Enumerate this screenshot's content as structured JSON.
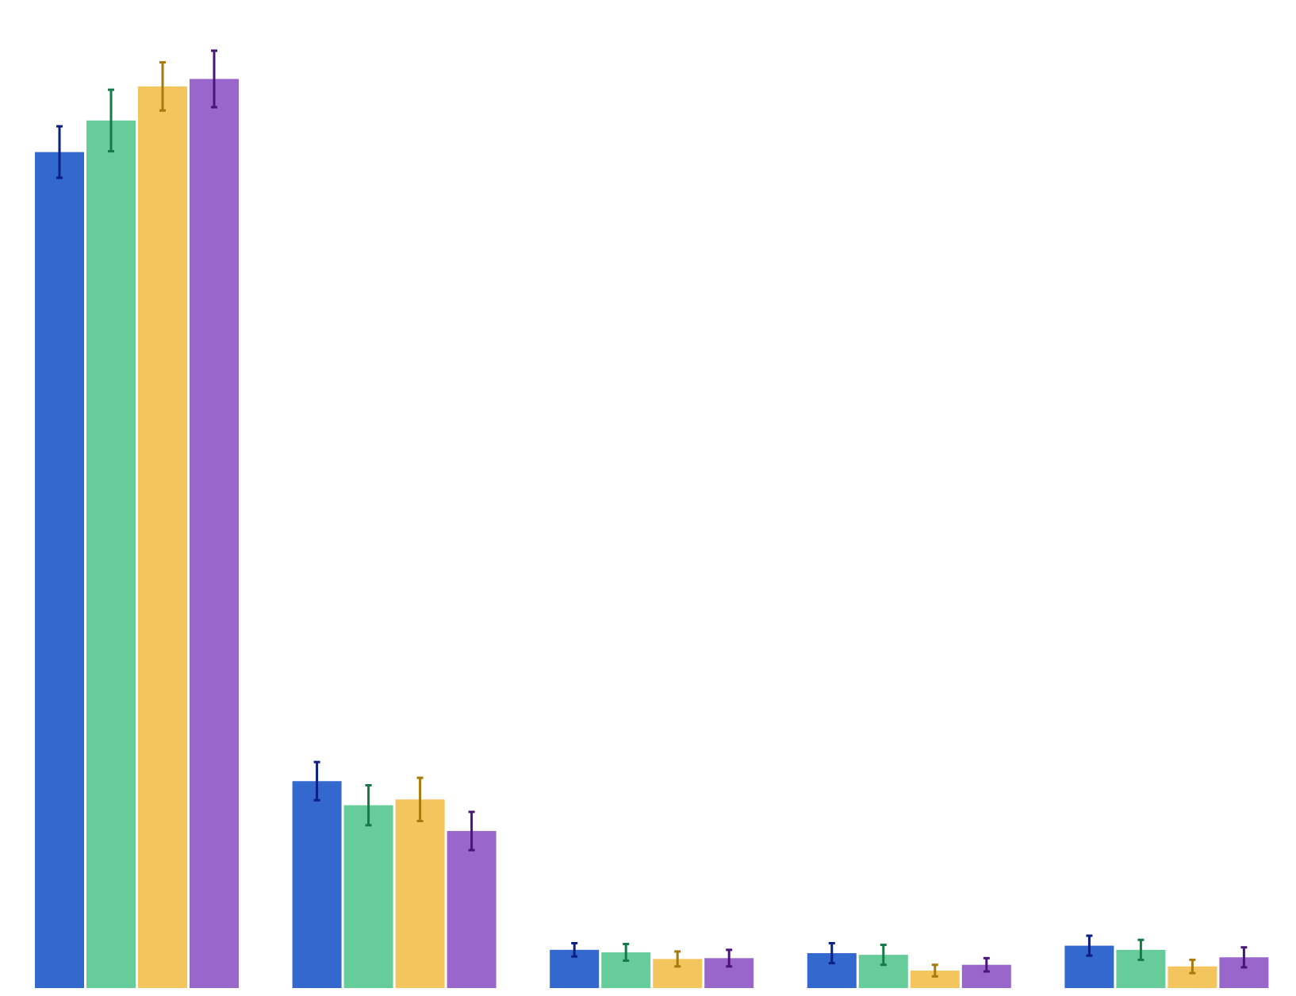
{
  "chart_data": {
    "type": "bar",
    "title": "",
    "xlabel": "",
    "ylabel": "",
    "categories": [
      "",
      "",
      "",
      "",
      ""
    ],
    "ylim": [
      0,
      1189
    ],
    "grid": false,
    "legend": "none",
    "series": [
      {
        "color": "#3369cf",
        "error_color": "#0b1f84",
        "values": [
          1006,
          249,
          46,
          42,
          51
        ],
        "errors": [
          31,
          23,
          8,
          12,
          12
        ]
      },
      {
        "color": "#66cc99",
        "error_color": "#157a48",
        "values": [
          1044,
          220,
          43,
          40,
          46
        ],
        "errors": [
          37,
          24,
          10,
          12,
          12
        ]
      },
      {
        "color": "#f4c45d",
        "error_color": "#a77a0a",
        "values": [
          1085,
          227,
          35,
          21,
          26
        ],
        "errors": [
          29,
          26,
          9,
          7,
          8
        ]
      },
      {
        "color": "#9966cc",
        "error_color": "#4a1577",
        "values": [
          1094,
          189,
          36,
          28,
          37
        ],
        "errors": [
          34,
          23,
          10,
          8,
          12
        ]
      }
    ]
  }
}
